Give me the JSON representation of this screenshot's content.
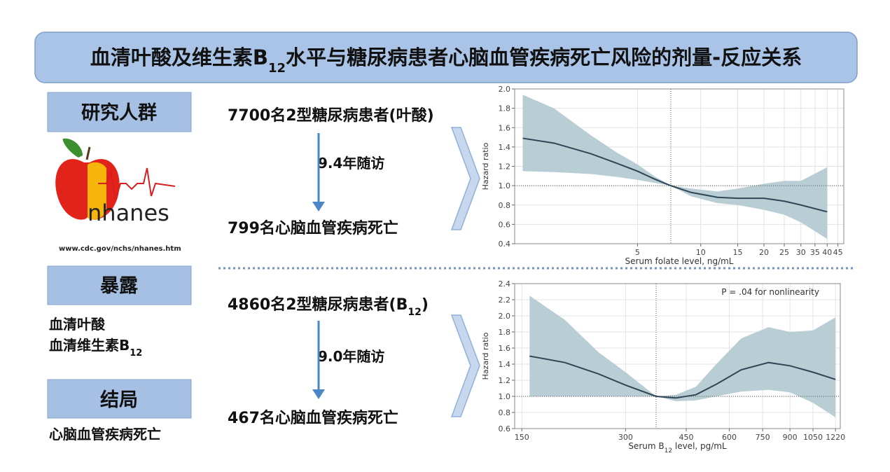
{
  "title": {
    "parts": [
      "血清叶酸及维生素B",
      "12",
      "水平与糖尿病患者心脑血管疾病死亡风险的剂量-反应关系"
    ]
  },
  "left": {
    "population_label": "研究人群",
    "logo_text": "nhanes",
    "logo_url": "www.cdc.gov/nchs/nhanes.htm",
    "exposure_label": "暴露",
    "exposure_items": [
      [
        "血清叶酸"
      ],
      [
        "血清维生素B",
        "12"
      ]
    ],
    "outcome_label": "结局",
    "outcome_item": "心脑血管疾病死亡"
  },
  "flows": [
    {
      "start": [
        "7700名2型糖尿病患者(叶酸)"
      ],
      "followup": "9.4年随访",
      "end": "799名心脑血管疾病死亡"
    },
    {
      "start": [
        "4860名2型糖尿病患者(B",
        "12",
        ")"
      ],
      "followup": "9.0年随访",
      "end": "467名心脑血管疾病死亡"
    }
  ],
  "chart_data": [
    {
      "type": "line",
      "xscale": "log",
      "ylabel": "Hazard ratio",
      "xlabel": [
        "Serum folate level, ng/mL"
      ],
      "xlim": [
        1.3,
        48
      ],
      "xticks": [
        5,
        10,
        15,
        20,
        25,
        30,
        35,
        40,
        45
      ],
      "ylim": [
        0.4,
        2.0
      ],
      "yticks": [
        0.4,
        0.6,
        0.8,
        {
          "value": 1,
          "label": "1.0"
        },
        1.2,
        1.4,
        1.6,
        1.8,
        {
          "value": 2,
          "label": "2.0"
        }
      ],
      "grid": true,
      "reference_x": 7.2,
      "reference_y": 1,
      "line_color": "#2f4656",
      "band_color": "#b9cdd5",
      "x": [
        1.42,
        2,
        3,
        4,
        5,
        6,
        7.2,
        9,
        12,
        15,
        20,
        25,
        30,
        40
      ],
      "values": [
        1.49,
        1.44,
        1.33,
        1.23,
        1.15,
        1.07,
        1.0,
        0.93,
        0.88,
        0.87,
        0.87,
        0.84,
        0.8,
        0.73
      ],
      "ci_lower": [
        1.15,
        1.14,
        1.12,
        1.09,
        1.06,
        1.03,
        1.0,
        0.89,
        0.82,
        0.8,
        0.75,
        0.7,
        0.62,
        0.45
      ],
      "ci_upper": [
        1.94,
        1.8,
        1.52,
        1.34,
        1.22,
        1.1,
        1.0,
        0.97,
        0.94,
        0.97,
        1.02,
        1.05,
        1.05,
        1.19
      ]
    },
    {
      "type": "line",
      "xscale": "log",
      "ylabel": "Hazard ratio",
      "xlabel": [
        "Serum B",
        "12",
        " level, pg/mL"
      ],
      "annotation": "P = .04 for nonlinearity",
      "xlim": [
        143,
        1260
      ],
      "xticks": [
        150,
        300,
        450,
        600,
        750,
        900,
        1050,
        1220
      ],
      "ylim": [
        0.6,
        2.4
      ],
      "yticks": [
        0.6,
        0.8,
        {
          "value": 1,
          "label": "1.0"
        },
        1.2,
        1.4,
        1.6,
        1.8,
        {
          "value": 2,
          "label": "2.0"
        },
        2.2,
        2.4
      ],
      "grid": true,
      "reference_x": 368,
      "reference_y": 1,
      "line_color": "#2f4656",
      "band_color": "#b9cdd5",
      "x": [
        158,
        200,
        250,
        300,
        368,
        420,
        480,
        550,
        650,
        780,
        900,
        1050,
        1220
      ],
      "values": [
        1.5,
        1.42,
        1.28,
        1.14,
        1.0,
        0.98,
        1.02,
        1.15,
        1.33,
        1.42,
        1.38,
        1.3,
        1.21
      ],
      "ci_lower": [
        1.0,
        1.0,
        1.0,
        1.0,
        1.0,
        0.94,
        0.95,
        1.0,
        1.06,
        1.08,
        1.05,
        0.92,
        0.74
      ],
      "ci_upper": [
        2.25,
        1.95,
        1.55,
        1.3,
        1.0,
        1.02,
        1.12,
        1.4,
        1.72,
        1.86,
        1.8,
        1.82,
        1.98
      ]
    }
  ]
}
